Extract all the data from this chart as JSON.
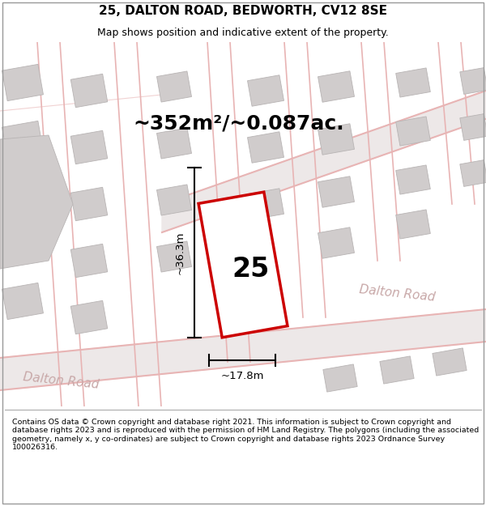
{
  "title_line1": "25, DALTON ROAD, BEDWORTH, CV12 8SE",
  "title_line2": "Map shows position and indicative extent of the property.",
  "area_text": "~352m²/~0.087ac.",
  "plot_number": "25",
  "dim_width": "~17.8m",
  "dim_height": "~36.3m",
  "map_bg": "#f2efef",
  "road_color": "#e8b4b4",
  "road_fill": "#ede8e8",
  "plot_fill": "#ffffff",
  "plot_edge": "#cc0000",
  "building_fill": "#d0cccc",
  "building_edge": "#b8b4b4",
  "footer_text": "Contains OS data © Crown copyright and database right 2021. This information is subject to Crown copyright and database rights 2023 and is reproduced with the permission of HM Land Registry. The polygons (including the associated geometry, namely x, y co-ordinates) are subject to Crown copyright and database rights 2023 Ordnance Survey 100026316.",
  "road_label_color": "#c8a8a8",
  "title_fontsize": 11,
  "subtitle_fontsize": 9,
  "area_fontsize": 18,
  "plot_num_fontsize": 24,
  "road_label_fontsize": 11
}
